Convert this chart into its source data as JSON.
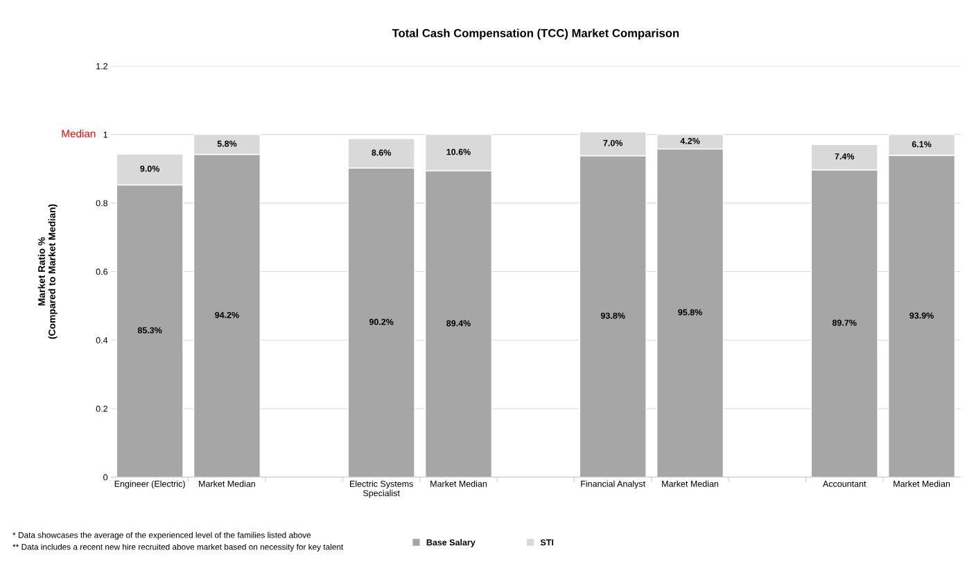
{
  "chart_data": {
    "type": "bar",
    "title": "Total Cash Compensation (TCC) Market Comparison",
    "ylabel": "Market Ratio %\n(Compared to Market Median)",
    "categories": [
      "Engineer (Electric)",
      "Market Median",
      null,
      "Electric Systems Specialist",
      "Market Median",
      null,
      "Financial Analyst",
      "Market Median",
      null,
      "Accountant",
      "Market Median"
    ],
    "stacked": true,
    "series": [
      {
        "name": "Base Salary",
        "color": "#a6a6a6",
        "values": [
          0.853,
          0.942,
          null,
          0.902,
          0.894,
          null,
          0.938,
          0.958,
          null,
          0.897,
          0.939
        ],
        "value_labels": [
          "85.3%",
          "94.2%",
          null,
          "90.2%",
          "89.4%",
          null,
          "93.8%",
          "95.8%",
          null,
          "89.7%",
          "93.9%"
        ]
      },
      {
        "name": "STI",
        "color": "#d9d9d9",
        "values": [
          0.09,
          0.058,
          null,
          0.086,
          0.106,
          null,
          0.07,
          0.042,
          null,
          0.074,
          0.061
        ],
        "value_labels": [
          "9.0%",
          "5.8%",
          null,
          "8.6%",
          "10.6%",
          null,
          "7.0%",
          "4.2%",
          null,
          "7.4%",
          "6.1%"
        ]
      }
    ],
    "ylim": [
      0,
      1.2
    ],
    "yticks": [
      0,
      0.2,
      0.4,
      0.6,
      0.8,
      1,
      1.2
    ],
    "grid": "y",
    "legend": "bottom",
    "ref_lines": [
      {
        "axis": "y",
        "value": 1,
        "label": "Median",
        "color": "#d9d9d9"
      }
    ],
    "annotations": [
      "* Data showcases the average of the experienced level of the families listed above",
      "** Data includes a recent new hire recruited above market based on necessity for key talent"
    ]
  }
}
